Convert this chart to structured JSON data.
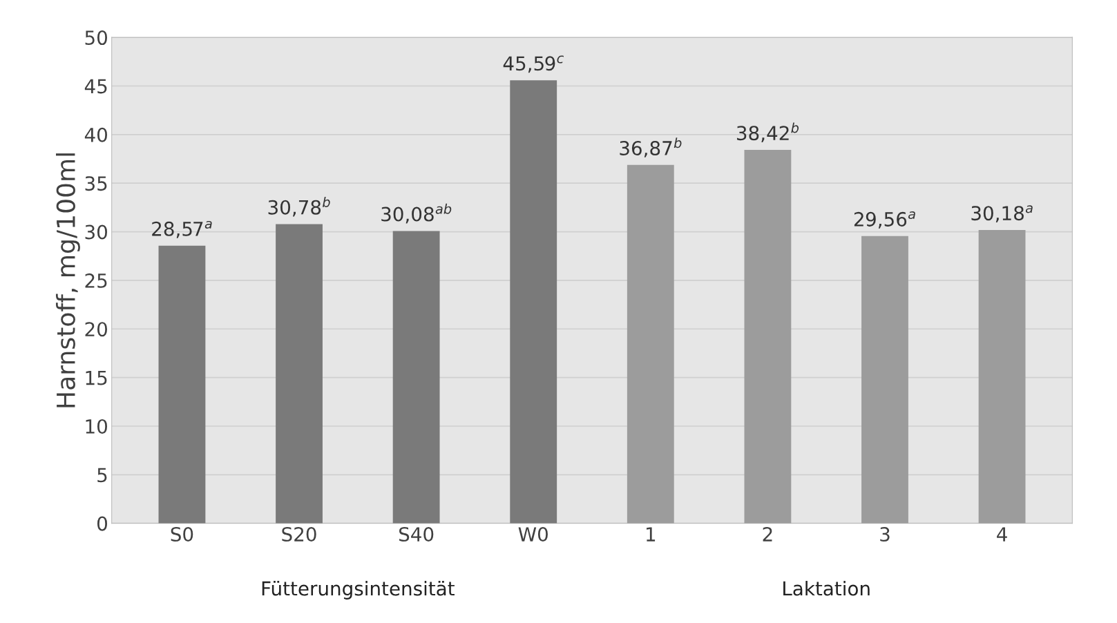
{
  "chart_data": {
    "type": "bar",
    "ylabel": "Harnstoff, mg/100ml",
    "categories": [
      "S0",
      "S20",
      "S40",
      "W0",
      "1",
      "2",
      "3",
      "4"
    ],
    "values": [
      28.57,
      30.78,
      30.08,
      45.59,
      36.87,
      38.42,
      29.56,
      30.18
    ],
    "colors": [
      "#7a7a7a",
      "#7a7a7a",
      "#7a7a7a",
      "#7a7a7a",
      "#9c9c9c",
      "#9c9c9c",
      "#9c9c9c",
      "#9c9c9c"
    ],
    "value_labels": [
      "28,57$^{a}$",
      "30,78$^{b}$",
      "30,08$^{ab}$",
      "45,59$^{c}$",
      "36,87$^{b}$",
      "38,42$^{b}$",
      "29,56$^{a}$",
      "30,18$^{a}$"
    ],
    "annotations": [
      "Fütterungsintensität",
      "Laktation"
    ],
    "ylim": [
      0,
      50
    ],
    "yticks": [
      0,
      5,
      10,
      15,
      20,
      25,
      30,
      35,
      40,
      45,
      50
    ],
    "grid": "y"
  }
}
